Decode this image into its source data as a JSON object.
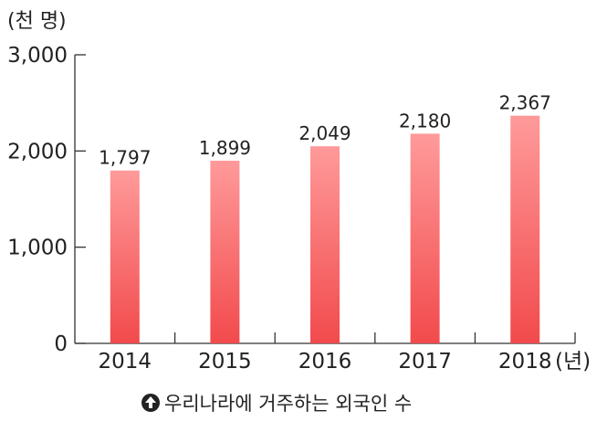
{
  "chart_data": {
    "type": "bar",
    "y_unit_label": "(천 명)",
    "x_unit_label": "(년)",
    "categories": [
      "2014",
      "2015",
      "2016",
      "2017",
      "2018"
    ],
    "values": [
      1797,
      1899,
      2049,
      2180,
      2367
    ],
    "value_labels": [
      "1,797",
      "1,899",
      "2,049",
      "2,180",
      "2,367"
    ],
    "ylim": [
      0,
      3000
    ],
    "y_ticks": [
      0,
      1000,
      2000,
      3000
    ],
    "y_tick_labels": [
      "0",
      "1,000",
      "2,000",
      "3,000"
    ],
    "grid": false,
    "legend": "none",
    "bar_color_top": "#ff9a9a",
    "bar_color_bottom": "#f24a4c"
  },
  "caption": {
    "icon": "up-arrow-circle-icon",
    "text": "우리나라에 거주하는 외국인 수"
  }
}
